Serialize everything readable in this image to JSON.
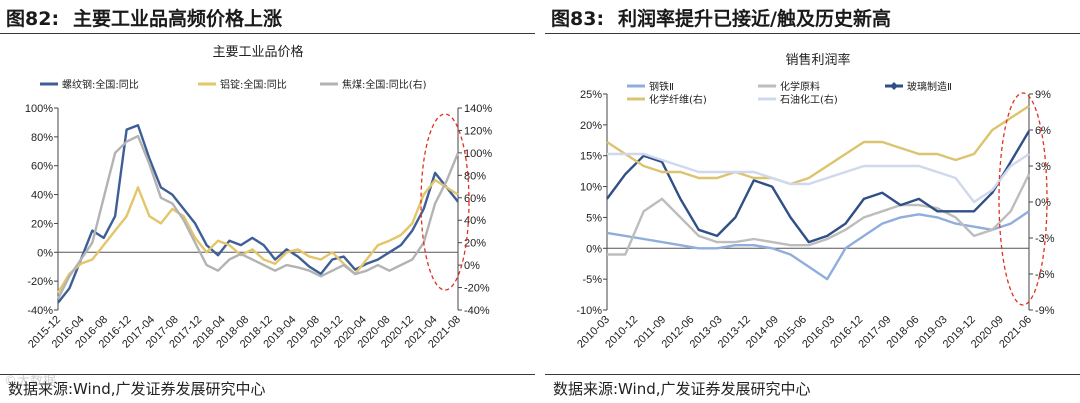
{
  "left": {
    "figure_number": "图82:",
    "figure_title": "主要工业品高频价格上涨",
    "source": "数据来源:Wind,广发证券发展研究中心",
    "colors": {
      "rebar": "#3e5f96",
      "alu": "#e3c56a",
      "coke": "#b3b3b3",
      "ellipse": "#e03020"
    }
  },
  "right": {
    "figure_number": "图83:",
    "figure_title": "利润率提升已接近/触及历史新高",
    "source": "数据来源:Wind,广发证券发展研究中心",
    "colors": {
      "steel": "#8faedb",
      "chem": "#bdbdbd",
      "glass": "#2f4f86",
      "fiber": "#dcc46e",
      "petro": "#cfd8ec",
      "ellipse": "#e03020"
    }
  },
  "watermark": "©大数据",
  "chart_data": [
    {
      "type": "line",
      "title": "主要工业品价格",
      "x": [
        "2015-12",
        "2016-02",
        "2016-04",
        "2016-06",
        "2016-08",
        "2016-10",
        "2016-12",
        "2017-02",
        "2017-04",
        "2017-06",
        "2017-08",
        "2017-10",
        "2017-12",
        "2018-02",
        "2018-04",
        "2018-06",
        "2018-08",
        "2018-10",
        "2018-12",
        "2019-02",
        "2019-04",
        "2019-06",
        "2019-08",
        "2019-10",
        "2019-12",
        "2020-02",
        "2020-04",
        "2020-06",
        "2020-08",
        "2020-10",
        "2020-12",
        "2021-02",
        "2021-04",
        "2021-06",
        "2021-08",
        "2021-09"
      ],
      "xticks": [
        "2015-12",
        "2016-04",
        "2016-08",
        "2016-12",
        "2017-04",
        "2017-08",
        "2017-12",
        "2018-04",
        "2018-08",
        "2018-12",
        "2019-04",
        "2019-08",
        "2019-12",
        "2020-04",
        "2020-08",
        "2020-12",
        "2021-04",
        "2021-08"
      ],
      "y_left": {
        "min": -40,
        "max": 100,
        "step": 20,
        "ticks": [
          "-40%",
          "-20%",
          "0%",
          "20%",
          "40%",
          "60%",
          "80%",
          "100%"
        ]
      },
      "y_right": {
        "min": -40,
        "max": 140,
        "step": 20,
        "ticks": [
          "-40%",
          "-20%",
          "0%",
          "20%",
          "40%",
          "60%",
          "80%",
          "100%",
          "120%",
          "140%"
        ]
      },
      "series": [
        {
          "name": "螺纹钢:全国:同比",
          "axis": "left",
          "color": "#3e5f96",
          "values": [
            -35,
            -25,
            -5,
            15,
            10,
            25,
            85,
            88,
            65,
            45,
            40,
            30,
            20,
            5,
            -2,
            8,
            5,
            10,
            5,
            -5,
            2,
            -3,
            -10,
            -15,
            -5,
            -3,
            -12,
            -8,
            -5,
            0,
            5,
            15,
            30,
            55,
            45,
            35
          ]
        },
        {
          "name": "铝锭:全国:同比",
          "axis": "left",
          "color": "#e3c56a",
          "values": [
            -28,
            -15,
            -8,
            -5,
            5,
            15,
            25,
            45,
            25,
            20,
            30,
            25,
            10,
            0,
            8,
            5,
            -2,
            2,
            -5,
            -8,
            0,
            2,
            -3,
            -5,
            0,
            -8,
            -15,
            -5,
            5,
            8,
            12,
            20,
            40,
            50,
            45,
            40
          ]
        },
        {
          "name": "焦煤:全国:同比(右)",
          "axis": "right",
          "color": "#b3b3b3",
          "values": [
            -30,
            -10,
            5,
            20,
            60,
            100,
            110,
            115,
            90,
            60,
            55,
            40,
            20,
            0,
            -5,
            5,
            10,
            5,
            0,
            -5,
            0,
            -2,
            -5,
            -10,
            -5,
            0,
            -8,
            -5,
            0,
            -5,
            0,
            5,
            20,
            55,
            75,
            100
          ]
        }
      ]
    },
    {
      "type": "line",
      "title": "销售利润率",
      "x": [
        "2010-03",
        "2010-09",
        "2011-03",
        "2011-09",
        "2012-03",
        "2012-09",
        "2013-03",
        "2013-09",
        "2014-03",
        "2014-09",
        "2015-03",
        "2015-09",
        "2016-03",
        "2016-09",
        "2017-03",
        "2017-09",
        "2018-03",
        "2018-09",
        "2019-03",
        "2019-09",
        "2020-03",
        "2020-09",
        "2021-03",
        "2021-06"
      ],
      "xticks": [
        "2010-03",
        "2010-12",
        "2011-09",
        "2012-06",
        "2013-03",
        "2013-12",
        "2014-09",
        "2015-06",
        "2016-03",
        "2016-12",
        "2017-09",
        "2018-06",
        "2019-03",
        "2019-12",
        "2020-09",
        "2021-06"
      ],
      "y_left": {
        "min": -10,
        "max": 25,
        "step": 5,
        "ticks": [
          "-10%",
          "-5%",
          "0%",
          "5%",
          "10%",
          "15%",
          "20%",
          "25%"
        ]
      },
      "y_right": {
        "min": -9,
        "max": 9,
        "step": 3,
        "ticks": [
          "-9%",
          "-6%",
          "-3%",
          "0%",
          "3%",
          "6%",
          "9%"
        ]
      },
      "series": [
        {
          "name": "钢铁Ⅱ",
          "axis": "left",
          "color": "#8faedb",
          "values": [
            2.5,
            2,
            1.5,
            1,
            0.5,
            0,
            0,
            0.5,
            0.5,
            0,
            -1,
            -3,
            -5,
            0,
            2,
            4,
            5,
            5.5,
            5,
            4,
            3.5,
            3,
            4,
            6
          ]
        },
        {
          "name": "化学原料",
          "axis": "left",
          "color": "#bdbdbd",
          "values": [
            -1,
            -1,
            6,
            8,
            5,
            2,
            1,
            1,
            1.5,
            1,
            0.5,
            0.5,
            1.5,
            3,
            5,
            6,
            7,
            7,
            6.5,
            5,
            2,
            3,
            6,
            12
          ]
        },
        {
          "name": "玻璃制造Ⅱ",
          "axis": "left",
          "color": "#2f4f86",
          "values": [
            8,
            12,
            15,
            14,
            8,
            3,
            2,
            5,
            11,
            10,
            5,
            1,
            2,
            4,
            8,
            9,
            7,
            8,
            6,
            6,
            6,
            9,
            14,
            19
          ]
        },
        {
          "name": "化学纤维(右)",
          "axis": "right",
          "color": "#dcc46e",
          "values": [
            5,
            4,
            3,
            2.5,
            2.5,
            2,
            2,
            2.5,
            2,
            2,
            1.5,
            2,
            3,
            4,
            5,
            5,
            4.5,
            4,
            4,
            3.5,
            4,
            6,
            7,
            8
          ]
        },
        {
          "name": "石油化工(右)",
          "axis": "right",
          "color": "#cfd8ec",
          "values": [
            4,
            4,
            4,
            3.5,
            3,
            2.5,
            2.5,
            2.5,
            2.5,
            2,
            1.5,
            1.5,
            2,
            2.5,
            3,
            3,
            3,
            3,
            2.5,
            2,
            0,
            1,
            3,
            4
          ]
        }
      ]
    }
  ]
}
